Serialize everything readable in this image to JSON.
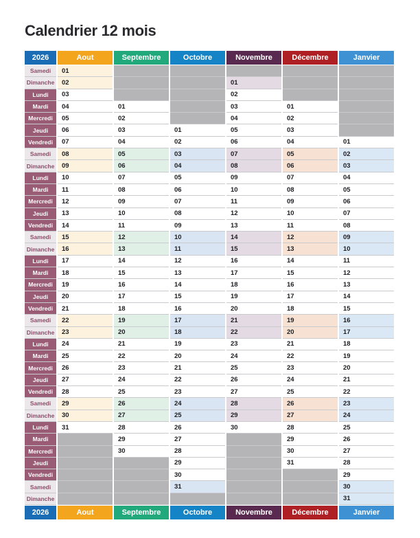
{
  "page": {
    "title": "Calendrier 12 mois"
  },
  "theme": {
    "year_header_bg": "#1A6DB5",
    "header_text": "#FFFFFF",
    "title_text": "#29292E",
    "gray_cell": "#B5B5B8",
    "weekday_name_bg": "#9A5B74",
    "weekday_name_text": "#FFFFFF",
    "weekend_name_bg": "#ECE7EB",
    "weekend_name_text": "#8A4E68",
    "row_line": "#C9CACD",
    "number_text": "#202024"
  },
  "calendar": {
    "year_label": "2026",
    "columns": [
      {
        "label": "Aout",
        "header_bg": "#F3A51E",
        "weekend_bg": "#FCF2DD"
      },
      {
        "label": "Septembre",
        "header_bg": "#21A87B",
        "weekend_bg": "#E0F0E7"
      },
      {
        "label": "Octobre",
        "header_bg": "#1484C7",
        "weekend_bg": "#D9E5F3"
      },
      {
        "label": "Novembre",
        "header_bg": "#59294F",
        "weekend_bg": "#E4DAE3"
      },
      {
        "label": "Décembre",
        "header_bg": "#AF2024",
        "weekend_bg": "#F6E1D3"
      },
      {
        "label": "Janvier",
        "header_bg": "#3E92D4",
        "weekend_bg": "#DAE8F6"
      }
    ],
    "rows": [
      {
        "day": "Samedi",
        "weekend": true,
        "values": [
          "01",
          "",
          "",
          "",
          "",
          ""
        ]
      },
      {
        "day": "Dimanche",
        "weekend": true,
        "values": [
          "02",
          "",
          "",
          "01",
          "",
          ""
        ]
      },
      {
        "day": "Lundi",
        "weekend": false,
        "values": [
          "03",
          "",
          "",
          "02",
          "",
          ""
        ]
      },
      {
        "day": "Mardi",
        "weekend": false,
        "values": [
          "04",
          "01",
          "",
          "03",
          "01",
          ""
        ]
      },
      {
        "day": "Mercredi",
        "weekend": false,
        "values": [
          "05",
          "02",
          "",
          "04",
          "02",
          ""
        ]
      },
      {
        "day": "Jeudi",
        "weekend": false,
        "values": [
          "06",
          "03",
          "01",
          "05",
          "03",
          ""
        ]
      },
      {
        "day": "Vendredi",
        "weekend": false,
        "values": [
          "07",
          "04",
          "02",
          "06",
          "04",
          "01"
        ]
      },
      {
        "day": "Samedi",
        "weekend": true,
        "values": [
          "08",
          "05",
          "03",
          "07",
          "05",
          "02"
        ]
      },
      {
        "day": "Dimanche",
        "weekend": true,
        "values": [
          "09",
          "06",
          "04",
          "08",
          "06",
          "03"
        ]
      },
      {
        "day": "Lundi",
        "weekend": false,
        "values": [
          "10",
          "07",
          "05",
          "09",
          "07",
          "04"
        ]
      },
      {
        "day": "Mardi",
        "weekend": false,
        "values": [
          "11",
          "08",
          "06",
          "10",
          "08",
          "05"
        ]
      },
      {
        "day": "Mercredi",
        "weekend": false,
        "values": [
          "12",
          "09",
          "07",
          "11",
          "09",
          "06"
        ]
      },
      {
        "day": "Jeudi",
        "weekend": false,
        "values": [
          "13",
          "10",
          "08",
          "12",
          "10",
          "07"
        ]
      },
      {
        "day": "Vendredi",
        "weekend": false,
        "values": [
          "14",
          "11",
          "09",
          "13",
          "11",
          "08"
        ]
      },
      {
        "day": "Samedi",
        "weekend": true,
        "values": [
          "15",
          "12",
          "10",
          "14",
          "12",
          "09"
        ]
      },
      {
        "day": "Dimanche",
        "weekend": true,
        "values": [
          "16",
          "13",
          "11",
          "15",
          "13",
          "10"
        ]
      },
      {
        "day": "Lundi",
        "weekend": false,
        "values": [
          "17",
          "14",
          "12",
          "16",
          "14",
          "11"
        ]
      },
      {
        "day": "Mardi",
        "weekend": false,
        "values": [
          "18",
          "15",
          "13",
          "17",
          "15",
          "12"
        ]
      },
      {
        "day": "Mercredi",
        "weekend": false,
        "values": [
          "19",
          "16",
          "14",
          "18",
          "16",
          "13"
        ]
      },
      {
        "day": "Jeudi",
        "weekend": false,
        "values": [
          "20",
          "17",
          "15",
          "19",
          "17",
          "14"
        ]
      },
      {
        "day": "Vendredi",
        "weekend": false,
        "values": [
          "21",
          "18",
          "16",
          "20",
          "18",
          "15"
        ]
      },
      {
        "day": "Samedi",
        "weekend": true,
        "values": [
          "22",
          "19",
          "17",
          "21",
          "19",
          "16"
        ]
      },
      {
        "day": "Dimanche",
        "weekend": true,
        "values": [
          "23",
          "20",
          "18",
          "22",
          "20",
          "17"
        ]
      },
      {
        "day": "Lundi",
        "weekend": false,
        "values": [
          "24",
          "21",
          "19",
          "23",
          "21",
          "18"
        ]
      },
      {
        "day": "Mardi",
        "weekend": false,
        "values": [
          "25",
          "22",
          "20",
          "24",
          "22",
          "19"
        ]
      },
      {
        "day": "Mercredi",
        "weekend": false,
        "values": [
          "26",
          "23",
          "21",
          "25",
          "23",
          "20"
        ]
      },
      {
        "day": "Jeudi",
        "weekend": false,
        "values": [
          "27",
          "24",
          "22",
          "26",
          "24",
          "21"
        ]
      },
      {
        "day": "Vendredi",
        "weekend": false,
        "values": [
          "28",
          "25",
          "23",
          "27",
          "25",
          "22"
        ]
      },
      {
        "day": "Samedi",
        "weekend": true,
        "values": [
          "29",
          "26",
          "24",
          "28",
          "26",
          "23"
        ]
      },
      {
        "day": "Dimanche",
        "weekend": true,
        "values": [
          "30",
          "27",
          "25",
          "29",
          "27",
          "24"
        ]
      },
      {
        "day": "Lundi",
        "weekend": false,
        "values": [
          "31",
          "28",
          "26",
          "30",
          "28",
          "25"
        ]
      },
      {
        "day": "Mardi",
        "weekend": false,
        "values": [
          "",
          "29",
          "27",
          "",
          "29",
          "26"
        ]
      },
      {
        "day": "Mercredi",
        "weekend": false,
        "values": [
          "",
          "30",
          "28",
          "",
          "30",
          "27"
        ]
      },
      {
        "day": "Jeudi",
        "weekend": false,
        "values": [
          "",
          "",
          "29",
          "",
          "31",
          "28"
        ]
      },
      {
        "day": "Vendredi",
        "weekend": false,
        "values": [
          "",
          "",
          "30",
          "",
          "",
          "29"
        ]
      },
      {
        "day": "Samedi",
        "weekend": true,
        "values": [
          "",
          "",
          "31",
          "",
          "",
          "30"
        ]
      },
      {
        "day": "Dimanche",
        "weekend": true,
        "values": [
          "",
          "",
          "",
          "",
          "",
          "31"
        ]
      }
    ]
  }
}
